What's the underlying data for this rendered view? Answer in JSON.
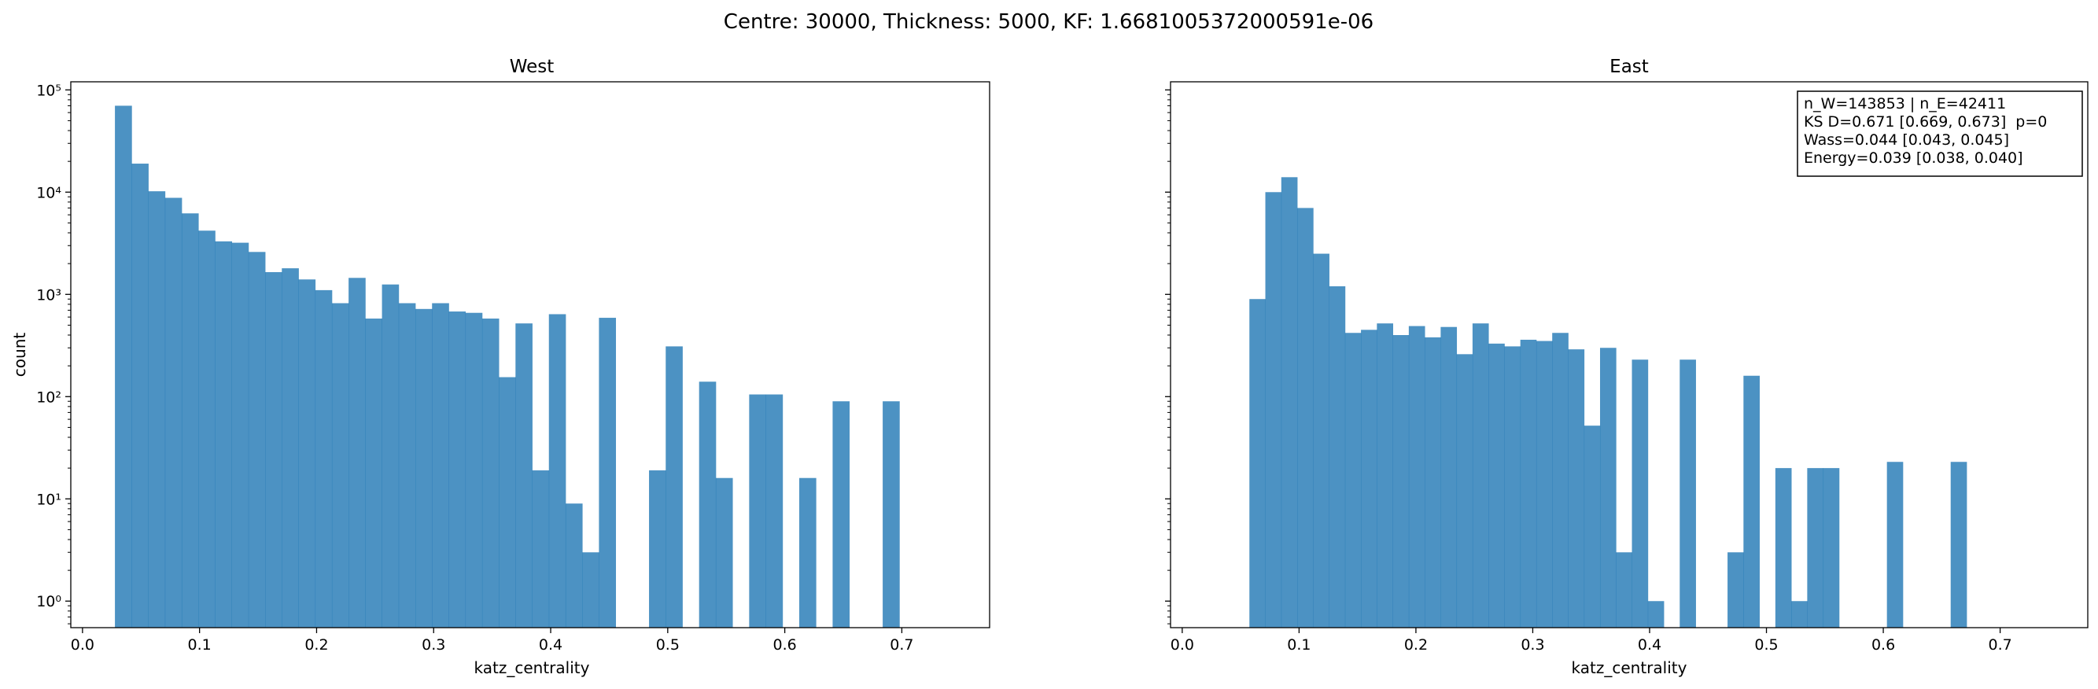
{
  "suptitle": "Centre: 30000, Thickness: 5000, KF: 1.6681005372000591e-06",
  "chart_data": [
    {
      "type": "bar",
      "title": "West",
      "xlabel": "katz_centrality",
      "ylabel": "count",
      "yscale": "log",
      "xlim": [
        -0.01,
        0.775
      ],
      "ylim": [
        0.55,
        120000
      ],
      "xticks": [
        0.0,
        0.1,
        0.2,
        0.3,
        0.4,
        0.5,
        0.6,
        0.7
      ],
      "xtick_labels": [
        "0.0",
        "0.1",
        "0.2",
        "0.3",
        "0.4",
        "0.5",
        "0.6",
        "0.7"
      ],
      "yticks": [
        1,
        10,
        100,
        1000,
        10000,
        100000
      ],
      "ytick_labels": [
        "10⁰",
        "10¹",
        "10²",
        "10³",
        "10⁴",
        "10⁵"
      ],
      "bin_start": 0.0277,
      "bin_width": 0.01426,
      "counts": [
        70000,
        19000,
        10200,
        8800,
        6200,
        4200,
        3300,
        3200,
        2600,
        1650,
        1800,
        1400,
        1100,
        820,
        1450,
        580,
        1250,
        820,
        720,
        820,
        680,
        660,
        580,
        155,
        520,
        19,
        640,
        9,
        3,
        590,
        0,
        0,
        19,
        310,
        0,
        140,
        16,
        0,
        105,
        105,
        0,
        16,
        0,
        90,
        0,
        0,
        90
      ]
    },
    {
      "type": "bar",
      "title": "East",
      "xlabel": "katz_centrality",
      "yscale": "log",
      "xlim": [
        -0.01,
        0.775
      ],
      "ylim": [
        0.55,
        120000
      ],
      "xticks": [
        0.0,
        0.1,
        0.2,
        0.3,
        0.4,
        0.5,
        0.6,
        0.7
      ],
      "xtick_labels": [
        "0.0",
        "0.1",
        "0.2",
        "0.3",
        "0.4",
        "0.5",
        "0.6",
        "0.7"
      ],
      "bin_start": 0.0575,
      "bin_width": 0.01364,
      "counts": [
        900,
        10000,
        14000,
        7000,
        2500,
        1200,
        420,
        450,
        520,
        400,
        490,
        380,
        480,
        260,
        520,
        330,
        310,
        360,
        350,
        420,
        290,
        52,
        300,
        3,
        230,
        1,
        0,
        230,
        0,
        0,
        3,
        160,
        0,
        20,
        1,
        20,
        20,
        0,
        0,
        0,
        23,
        0,
        0,
        0,
        23
      ],
      "stats_lines": [
        "n_W=143853 | n_E=42411",
        "KS D=0.671 [0.669, 0.673]  p=0",
        "Wass=0.044 [0.043, 0.045]",
        "Energy=0.039 [0.038, 0.040]"
      ]
    }
  ]
}
